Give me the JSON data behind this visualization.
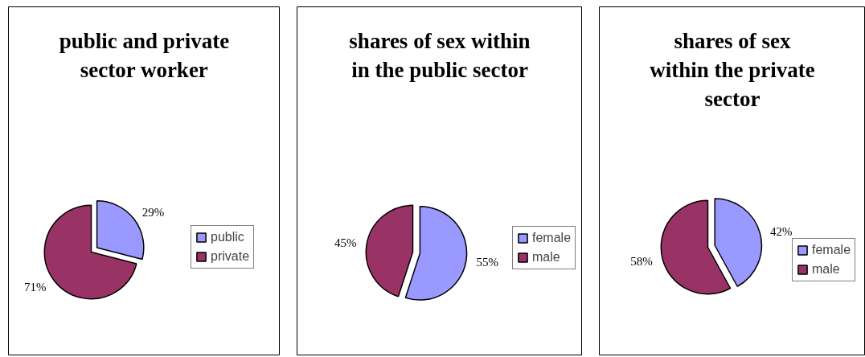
{
  "chart_data": [
    {
      "type": "pie",
      "title": "public and private sector worker",
      "categories": [
        "public",
        "private"
      ],
      "values": [
        29,
        71
      ],
      "colors": [
        "#9999ff",
        "#993366"
      ],
      "value_labels": [
        "29%",
        "71%"
      ],
      "legend": "right"
    },
    {
      "type": "pie",
      "title": "shares of sex within in the public sector",
      "categories": [
        "female",
        "male"
      ],
      "values": [
        55,
        45
      ],
      "colors": [
        "#9999ff",
        "#993366"
      ],
      "value_labels": [
        "55%",
        "45%"
      ],
      "legend": "right"
    },
    {
      "type": "pie",
      "title": "shares of sex within the private sector",
      "categories": [
        "female",
        "male"
      ],
      "values": [
        42,
        58
      ],
      "colors": [
        "#9999ff",
        "#993366"
      ],
      "value_labels": [
        "42%",
        "58%"
      ],
      "legend": "right"
    }
  ]
}
